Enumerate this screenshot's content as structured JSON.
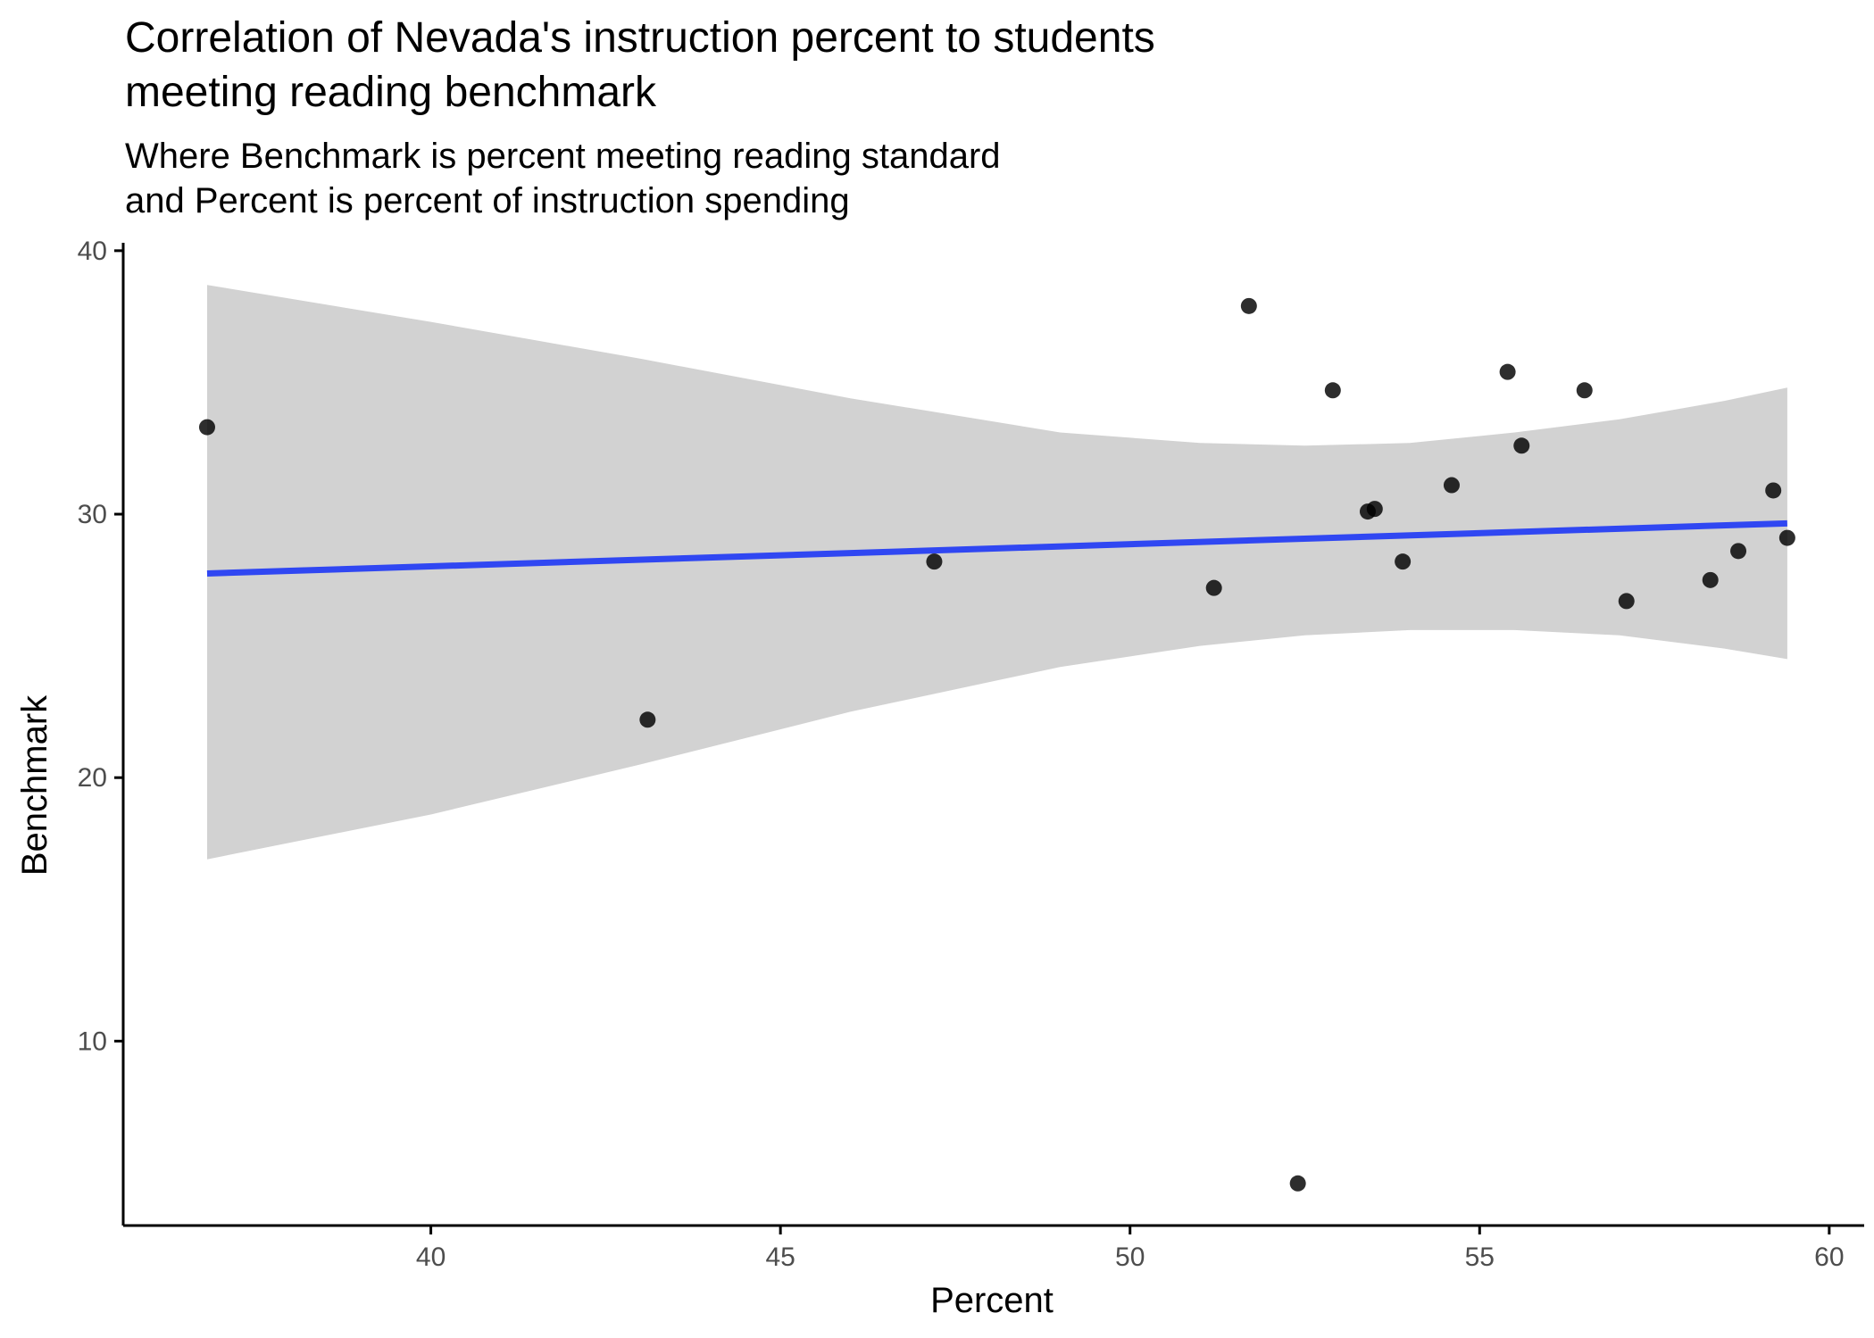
{
  "chart_data": {
    "type": "scatter",
    "title": "Correlation of Nevada's instruction percent to students",
    "title_line2": "meeting reading benchmark",
    "subtitle": "Where Benchmark is percent meeting reading standard",
    "subtitle_line2": "and Percent is percent of instruction spending",
    "xlabel": "Percent",
    "ylabel": "Benchmark",
    "xlim": [
      35.6,
      60.5
    ],
    "ylim": [
      3.0,
      40.3
    ],
    "xticks": [
      40,
      45,
      50,
      55,
      60
    ],
    "yticks": [
      10,
      20,
      30,
      40
    ],
    "grid": false,
    "colors": {
      "points": "#000000",
      "fit_line": "#3047f2",
      "confidence_band": "#d2d2d2",
      "axis": "#000000",
      "tick_label": "#4d4d4d"
    },
    "points": [
      {
        "x": 36.8,
        "y": 33.3
      },
      {
        "x": 43.1,
        "y": 22.2
      },
      {
        "x": 47.2,
        "y": 28.2
      },
      {
        "x": 51.2,
        "y": 27.2
      },
      {
        "x": 51.7,
        "y": 37.9
      },
      {
        "x": 52.4,
        "y": 4.6
      },
      {
        "x": 52.9,
        "y": 34.7
      },
      {
        "x": 53.4,
        "y": 30.1
      },
      {
        "x": 53.5,
        "y": 30.2
      },
      {
        "x": 53.9,
        "y": 28.2
      },
      {
        "x": 54.6,
        "y": 31.1
      },
      {
        "x": 55.4,
        "y": 35.4
      },
      {
        "x": 55.6,
        "y": 32.6
      },
      {
        "x": 56.5,
        "y": 34.7
      },
      {
        "x": 57.1,
        "y": 26.7
      },
      {
        "x": 58.3,
        "y": 27.5
      },
      {
        "x": 58.7,
        "y": 28.6
      },
      {
        "x": 59.2,
        "y": 30.9
      },
      {
        "x": 59.4,
        "y": 29.1
      }
    ],
    "fit_line": {
      "x_start": 36.8,
      "y_start": 27.75,
      "x_end": 59.4,
      "y_end": 29.65
    },
    "confidence_band": [
      {
        "x": 36.8,
        "lower": 16.9,
        "upper": 38.7
      },
      {
        "x": 40.0,
        "lower": 18.6,
        "upper": 37.3
      },
      {
        "x": 43.0,
        "lower": 20.5,
        "upper": 35.9
      },
      {
        "x": 46.0,
        "lower": 22.5,
        "upper": 34.4
      },
      {
        "x": 49.0,
        "lower": 24.2,
        "upper": 33.1
      },
      {
        "x": 51.0,
        "lower": 25.0,
        "upper": 32.7
      },
      {
        "x": 52.5,
        "lower": 25.4,
        "upper": 32.6
      },
      {
        "x": 54.0,
        "lower": 25.6,
        "upper": 32.7
      },
      {
        "x": 55.5,
        "lower": 25.6,
        "upper": 33.1
      },
      {
        "x": 57.0,
        "lower": 25.4,
        "upper": 33.6
      },
      {
        "x": 58.5,
        "lower": 24.9,
        "upper": 34.3
      },
      {
        "x": 59.4,
        "lower": 24.5,
        "upper": 34.8
      }
    ]
  }
}
